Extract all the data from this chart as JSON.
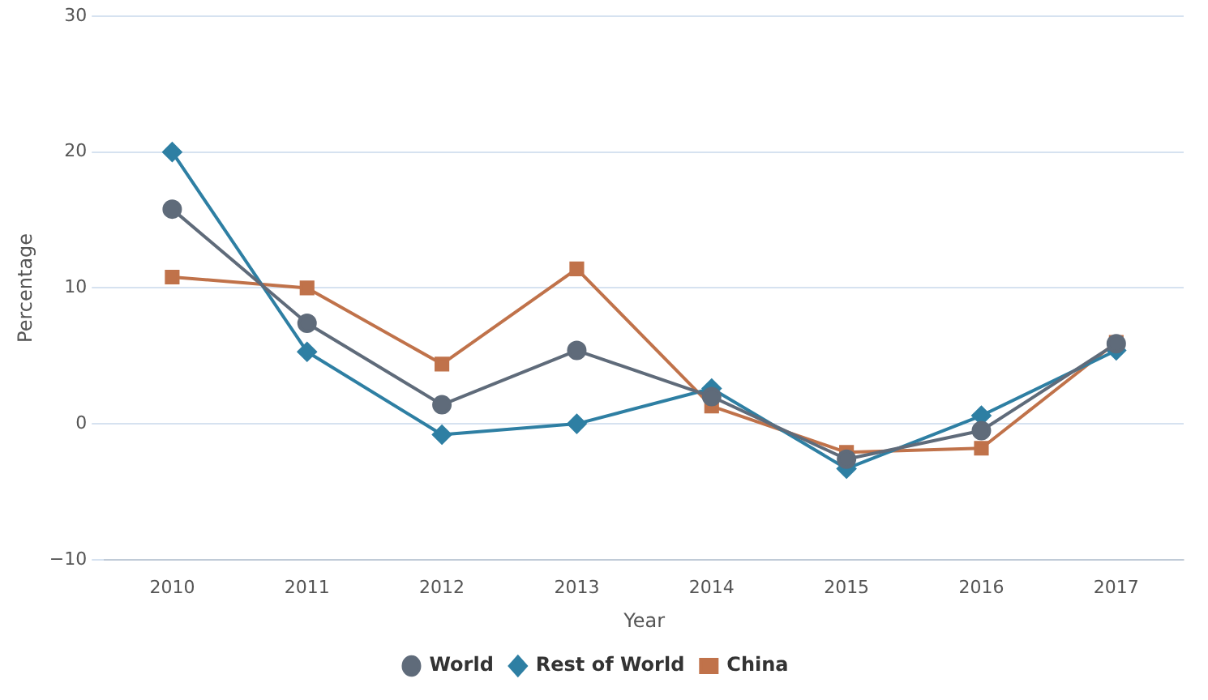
{
  "chart_data": {
    "type": "line",
    "xlabel": "Year",
    "ylabel": "Percentage",
    "categories": [
      "2010",
      "2011",
      "2012",
      "2013",
      "2014",
      "2015",
      "2016",
      "2017"
    ],
    "series": [
      {
        "name": "World",
        "color": "#5f6b7a",
        "marker": "circle",
        "values": [
          15.8,
          7.4,
          1.4,
          5.4,
          2.0,
          -2.6,
          -0.5,
          5.9
        ]
      },
      {
        "name": "Rest of World",
        "color": "#2e7fa3",
        "marker": "diamond",
        "values": [
          20.0,
          5.3,
          -0.8,
          0,
          2.6,
          -3.3,
          0.6,
          5.4
        ]
      },
      {
        "name": "China",
        "color": "#c0724a",
        "marker": "square",
        "values": [
          10.8,
          10.0,
          4.4,
          11.4,
          1.3,
          -2.1,
          -1.8,
          6.0
        ]
      }
    ],
    "ylim": [
      -10,
      30
    ],
    "yticks": [
      -10,
      0,
      10,
      20,
      30
    ],
    "grid": "y",
    "legend": "bottom"
  }
}
